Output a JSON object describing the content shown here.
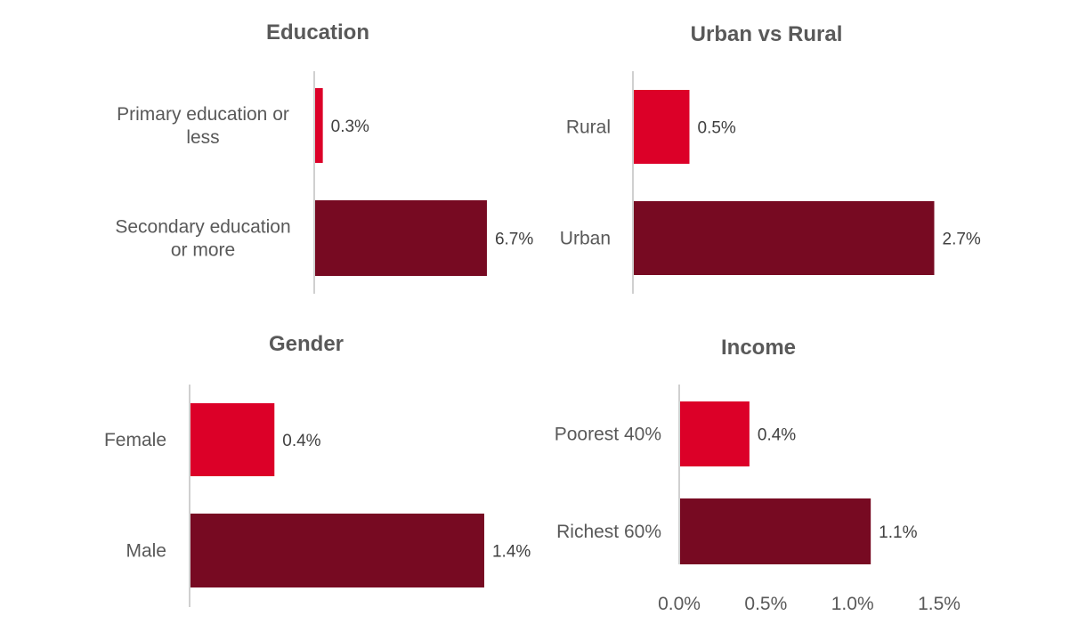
{
  "colors": {
    "low_group": "#DC0028",
    "high_group": "#770A22",
    "axis": "#D0D0D0",
    "text": "#595959"
  },
  "chart_data": [
    {
      "type": "bar",
      "orientation": "horizontal",
      "title": "Education",
      "categories": [
        [
          "Primary education or",
          "less"
        ],
        [
          "Secondary education",
          "or more"
        ]
      ],
      "values": [
        0.3,
        6.7
      ],
      "value_labels": [
        "0.3%",
        "6.7%"
      ]
    },
    {
      "type": "bar",
      "orientation": "horizontal",
      "title": "Urban vs Rural",
      "categories": [
        [
          "Rural"
        ],
        [
          "Urban"
        ]
      ],
      "values": [
        0.5,
        2.7
      ],
      "value_labels": [
        "0.5%",
        "2.7%"
      ]
    },
    {
      "type": "bar",
      "orientation": "horizontal",
      "title": "Gender",
      "categories": [
        [
          "Female"
        ],
        [
          "Male"
        ]
      ],
      "values": [
        0.4,
        1.4
      ],
      "value_labels": [
        "0.4%",
        "1.4%"
      ]
    },
    {
      "type": "bar",
      "orientation": "horizontal",
      "title": "Income",
      "categories": [
        [
          "Poorest 40%"
        ],
        [
          "Richest 60%"
        ]
      ],
      "values": [
        0.4,
        1.1
      ],
      "value_labels": [
        "0.4%",
        "1.1%"
      ],
      "xlim": [
        0,
        1.5
      ],
      "x_ticks": [
        "0.0%",
        "0.5%",
        "1.0%",
        "1.5%"
      ]
    }
  ]
}
